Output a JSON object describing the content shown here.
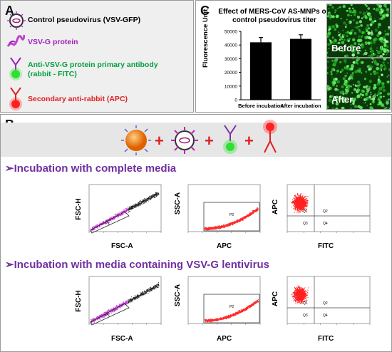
{
  "panel_a": {
    "label": "A",
    "items": [
      {
        "text": "Control pseudovirus (VSV-GFP)",
        "color": "#000000",
        "icon": "pseudovirus-icon"
      },
      {
        "text": "VSV-G protein",
        "color": "#a020c0",
        "icon": "protein-icon"
      },
      {
        "text": "Anti-VSV-G protein primary antibody (rabbit - FITC)",
        "line1": "Anti-VSV-G protein primary antibody",
        "line2": "(rabbit - FITC)",
        "color": "#00a040",
        "icon": "primary-antibody-icon"
      },
      {
        "text": "Secondary anti-rabbit (APC)",
        "color": "#e02020",
        "icon": "secondary-antibody-icon"
      }
    ]
  },
  "panel_c": {
    "label": "C",
    "title_line1": "Effect of MERS-CoV AS-MNPs on",
    "title_line2": "control pseudovirus titer",
    "micro_before": "Before",
    "micro_after": "After"
  },
  "chart_data": {
    "type": "bar",
    "categories": [
      "Before incubation",
      "After incubation"
    ],
    "values": [
      42000,
      44500
    ],
    "errors": [
      3500,
      3000
    ],
    "ylabel": "Fluorescence Unit",
    "ylim": [
      0,
      50000
    ],
    "yticks": [
      "0",
      "10000",
      "20000",
      "30000",
      "40000",
      "50000"
    ],
    "bar_color": "#000000"
  },
  "panel_b": {
    "label": "B",
    "section1": "➢Incubation with complete media",
    "section2": "➢Incubation with media containing VSV-G lentivirus",
    "plots": {
      "fsc_y": "FSC-H",
      "fsc_x": "FSC-A",
      "ssc_y": "SSC-A",
      "ssc_x": "APC",
      "q_y": "APC",
      "q_x": "FITC",
      "gate_p1": "P1",
      "gate_p2": "P2",
      "q2": "Q2",
      "q3": "Q3",
      "q4": "Q4",
      "q1": "Q1"
    }
  }
}
